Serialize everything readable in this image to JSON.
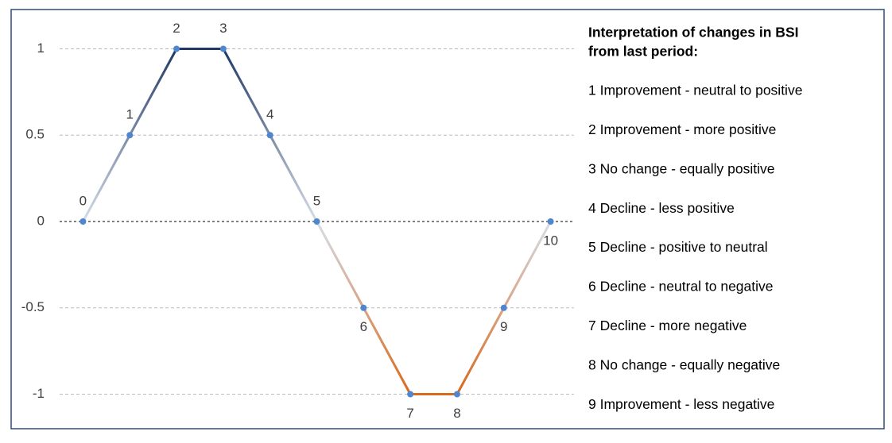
{
  "chart_data": {
    "type": "line",
    "x": [
      0,
      1,
      2,
      3,
      4,
      5,
      6,
      7,
      8,
      9,
      10
    ],
    "values": [
      0,
      0.5,
      1,
      1,
      0.5,
      0,
      -0.5,
      -1,
      -1,
      -0.5,
      0
    ],
    "xlim": [
      -0.5,
      10.5
    ],
    "ylim": [
      -1.2,
      1.2
    ],
    "yticks": [
      -1,
      -0.5,
      0,
      0.5,
      1
    ],
    "grid": true,
    "color_positive": "#1f3864",
    "color_zero": "#d6dde8",
    "color_negative": "#d9691c",
    "marker_color": "#4f86cf",
    "legend_title": [
      "Interpretation of changes in BSI",
      "from last period:"
    ],
    "legend_items": [
      "1 Improvement - neutral to positive",
      "2 Improvement - more positive",
      "3 No change - equally positive",
      "4 Decline - less positive",
      "5 Decline - positive to neutral",
      "6 Decline - neutral to negative",
      "7 Decline - more negative",
      "8 No change - equally negative",
      "9 Improvement - less negative"
    ]
  }
}
